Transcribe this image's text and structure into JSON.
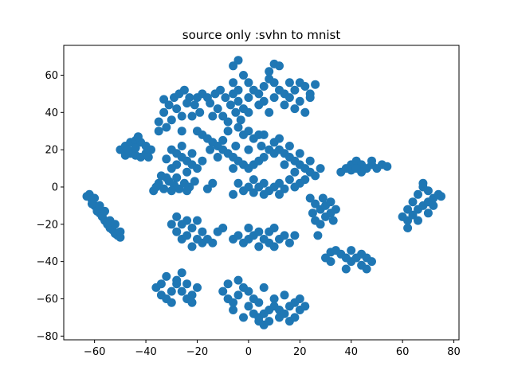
{
  "chart_data": {
    "type": "scatter",
    "title": "source only :svhn to mnist",
    "xlabel": "",
    "ylabel": "",
    "xlim": [
      -72,
      82
    ],
    "ylim": [
      -82,
      76
    ],
    "xticks": [
      -60,
      -40,
      -20,
      0,
      20,
      40,
      60,
      80
    ],
    "yticks": [
      -80,
      -60,
      -40,
      -20,
      0,
      20,
      40,
      60
    ],
    "xtick_labels": [
      "−60",
      "−40",
      "−20",
      "0",
      "20",
      "40",
      "60",
      "80"
    ],
    "ytick_labels": [
      "−80",
      "−60",
      "−40",
      "−20",
      "0",
      "20",
      "40",
      "60"
    ],
    "grid": false,
    "color": "#1f77b4",
    "points": [
      [
        -62,
        -4
      ],
      [
        -61,
        -7
      ],
      [
        -60,
        -10
      ],
      [
        -59,
        -12
      ],
      [
        -58,
        -14
      ],
      [
        -57,
        -16
      ],
      [
        -56,
        -18
      ],
      [
        -55,
        -20
      ],
      [
        -54,
        -22
      ],
      [
        -53,
        -23
      ],
      [
        -52,
        -25
      ],
      [
        -51,
        -26
      ],
      [
        -50,
        -27
      ],
      [
        -63,
        -5
      ],
      [
        -61,
        -9
      ],
      [
        -59,
        -13
      ],
      [
        -57,
        -15
      ],
      [
        -55,
        -19
      ],
      [
        -53,
        -21
      ],
      [
        -50,
        -24
      ],
      [
        -56,
        -13
      ],
      [
        -58,
        -10
      ],
      [
        -54,
        -18
      ],
      [
        -52,
        -20
      ],
      [
        -60,
        -6
      ],
      [
        -50,
        20
      ],
      [
        -48,
        22
      ],
      [
        -46,
        24
      ],
      [
        -44,
        25
      ],
      [
        -42,
        24
      ],
      [
        -40,
        22
      ],
      [
        -38,
        20
      ],
      [
        -46,
        18
      ],
      [
        -44,
        17
      ],
      [
        -42,
        16
      ],
      [
        -48,
        17
      ],
      [
        -40,
        18
      ],
      [
        -44,
        21
      ],
      [
        -43,
        27
      ],
      [
        -47,
        20
      ],
      [
        -39,
        16
      ],
      [
        -37,
        -2
      ],
      [
        -35,
        2
      ],
      [
        -33,
        -1
      ],
      [
        -31,
        3
      ],
      [
        -29,
        1
      ],
      [
        -27,
        -1
      ],
      [
        -25,
        2
      ],
      [
        -23,
        0
      ],
      [
        -21,
        3
      ],
      [
        -28,
        5
      ],
      [
        -32,
        5
      ],
      [
        -36,
        0
      ],
      [
        -24,
        -2
      ],
      [
        -30,
        -2
      ],
      [
        -34,
        6
      ],
      [
        -35,
        35
      ],
      [
        -33,
        40
      ],
      [
        -31,
        44
      ],
      [
        -29,
        48
      ],
      [
        -27,
        50
      ],
      [
        -25,
        52
      ],
      [
        -23,
        48
      ],
      [
        -21,
        44
      ],
      [
        -19,
        40
      ],
      [
        -30,
        36
      ],
      [
        -26,
        38
      ],
      [
        -22,
        38
      ],
      [
        -33,
        47
      ],
      [
        -28,
        42
      ],
      [
        -24,
        45
      ],
      [
        -20,
        48
      ],
      [
        -18,
        50
      ],
      [
        -35,
        30
      ],
      [
        -32,
        32
      ],
      [
        -26,
        30
      ],
      [
        -15,
        45
      ],
      [
        -13,
        50
      ],
      [
        -11,
        52
      ],
      [
        -9,
        48
      ],
      [
        -7,
        44
      ],
      [
        -5,
        40
      ],
      [
        -3,
        36
      ],
      [
        -12,
        42
      ],
      [
        -10,
        38
      ],
      [
        -8,
        35
      ],
      [
        -14,
        38
      ],
      [
        -6,
        50
      ],
      [
        -4,
        46
      ],
      [
        -2,
        42
      ],
      [
        -16,
        48
      ],
      [
        -20,
        30
      ],
      [
        -18,
        28
      ],
      [
        -16,
        26
      ],
      [
        -14,
        24
      ],
      [
        -12,
        22
      ],
      [
        -10,
        20
      ],
      [
        -8,
        18
      ],
      [
        -6,
        16
      ],
      [
        -4,
        14
      ],
      [
        -2,
        12
      ],
      [
        0,
        10
      ],
      [
        2,
        12
      ],
      [
        4,
        14
      ],
      [
        6,
        16
      ],
      [
        -10,
        25
      ],
      [
        -5,
        22
      ],
      [
        0,
        20
      ],
      [
        5,
        22
      ],
      [
        -15,
        20
      ],
      [
        -2,
        28
      ],
      [
        2,
        26
      ],
      [
        -8,
        30
      ],
      [
        -4,
        32
      ],
      [
        0,
        30
      ],
      [
        4,
        28
      ],
      [
        8,
        20
      ],
      [
        10,
        18
      ],
      [
        -12,
        16
      ],
      [
        -6,
        10
      ],
      [
        -30,
        20
      ],
      [
        -28,
        18
      ],
      [
        -26,
        16
      ],
      [
        -24,
        14
      ],
      [
        -22,
        12
      ],
      [
        -28,
        12
      ],
      [
        -24,
        8
      ],
      [
        -20,
        10
      ],
      [
        -18,
        14
      ],
      [
        -32,
        15
      ],
      [
        -26,
        22
      ],
      [
        -22,
        18
      ],
      [
        -30,
        10
      ],
      [
        -2,
        60
      ],
      [
        0,
        56
      ],
      [
        2,
        52
      ],
      [
        4,
        50
      ],
      [
        6,
        54
      ],
      [
        8,
        58
      ],
      [
        10,
        56
      ],
      [
        12,
        52
      ],
      [
        14,
        50
      ],
      [
        16,
        48
      ],
      [
        18,
        52
      ],
      [
        20,
        56
      ],
      [
        22,
        54
      ],
      [
        24,
        50
      ],
      [
        -4,
        52
      ],
      [
        -6,
        56
      ],
      [
        0,
        48
      ],
      [
        6,
        46
      ],
      [
        10,
        48
      ],
      [
        14,
        44
      ],
      [
        20,
        46
      ],
      [
        24,
        48
      ],
      [
        16,
        56
      ],
      [
        8,
        62
      ],
      [
        10,
        66
      ],
      [
        -6,
        65
      ],
      [
        -4,
        68
      ],
      [
        12,
        65
      ],
      [
        26,
        55
      ],
      [
        22,
        40
      ],
      [
        18,
        42
      ],
      [
        4,
        44
      ],
      [
        0,
        40
      ],
      [
        8,
        40
      ],
      [
        6,
        28
      ],
      [
        10,
        24
      ],
      [
        12,
        20
      ],
      [
        14,
        18
      ],
      [
        16,
        16
      ],
      [
        18,
        14
      ],
      [
        20,
        12
      ],
      [
        22,
        10
      ],
      [
        24,
        8
      ],
      [
        26,
        6
      ],
      [
        14,
        12
      ],
      [
        18,
        8
      ],
      [
        22,
        4
      ],
      [
        20,
        2
      ],
      [
        28,
        10
      ],
      [
        24,
        14
      ],
      [
        20,
        18
      ],
      [
        16,
        22
      ],
      [
        12,
        26
      ],
      [
        -4,
        2
      ],
      [
        -2,
        -2
      ],
      [
        0,
        0
      ],
      [
        2,
        -3
      ],
      [
        4,
        0
      ],
      [
        6,
        2
      ],
      [
        8,
        -2
      ],
      [
        10,
        0
      ],
      [
        12,
        2
      ],
      [
        14,
        -1
      ],
      [
        16,
        4
      ],
      [
        18,
        0
      ],
      [
        2,
        4
      ],
      [
        -6,
        -4
      ],
      [
        6,
        -4
      ],
      [
        12,
        -4
      ],
      [
        -14,
        2
      ],
      [
        -16,
        -1
      ],
      [
        24,
        -6
      ],
      [
        26,
        -9
      ],
      [
        28,
        -12
      ],
      [
        30,
        -10
      ],
      [
        32,
        -8
      ],
      [
        34,
        -12
      ],
      [
        30,
        -16
      ],
      [
        28,
        -20
      ],
      [
        26,
        -18
      ],
      [
        32,
        -14
      ],
      [
        29,
        -6
      ],
      [
        25,
        -14
      ],
      [
        33,
        -18
      ],
      [
        27,
        -26
      ],
      [
        36,
        8
      ],
      [
        38,
        10
      ],
      [
        40,
        12
      ],
      [
        42,
        14
      ],
      [
        44,
        12
      ],
      [
        46,
        10
      ],
      [
        48,
        12
      ],
      [
        50,
        10
      ],
      [
        52,
        12
      ],
      [
        54,
        11
      ],
      [
        44,
        8
      ],
      [
        40,
        9
      ],
      [
        48,
        14
      ],
      [
        42,
        10
      ],
      [
        62,
        -18
      ],
      [
        64,
        -15
      ],
      [
        66,
        -12
      ],
      [
        68,
        -10
      ],
      [
        70,
        -8
      ],
      [
        72,
        -6
      ],
      [
        74,
        -4
      ],
      [
        70,
        -2
      ],
      [
        68,
        0
      ],
      [
        66,
        -4
      ],
      [
        64,
        -8
      ],
      [
        62,
        -12
      ],
      [
        60,
        -16
      ],
      [
        72,
        -10
      ],
      [
        66,
        -18
      ],
      [
        70,
        -14
      ],
      [
        75,
        -5
      ],
      [
        62,
        -22
      ],
      [
        68,
        2
      ],
      [
        -30,
        -20
      ],
      [
        -28,
        -24
      ],
      [
        -26,
        -28
      ],
      [
        -24,
        -26
      ],
      [
        -22,
        -22
      ],
      [
        -20,
        -18
      ],
      [
        -18,
        -24
      ],
      [
        -16,
        -28
      ],
      [
        -14,
        -30
      ],
      [
        -12,
        -24
      ],
      [
        -10,
        -22
      ],
      [
        -20,
        -28
      ],
      [
        -24,
        -18
      ],
      [
        -28,
        -16
      ],
      [
        -26,
        -20
      ],
      [
        -18,
        -30
      ],
      [
        -22,
        -32
      ],
      [
        -4,
        -26
      ],
      [
        -2,
        -30
      ],
      [
        0,
        -28
      ],
      [
        2,
        -26
      ],
      [
        4,
        -24
      ],
      [
        6,
        -28
      ],
      [
        8,
        -30
      ],
      [
        10,
        -32
      ],
      [
        12,
        -28
      ],
      [
        14,
        -26
      ],
      [
        16,
        -30
      ],
      [
        8,
        -24
      ],
      [
        4,
        -32
      ],
      [
        -6,
        -28
      ],
      [
        10,
        -22
      ],
      [
        0,
        -22
      ],
      [
        18,
        -26
      ],
      [
        30,
        -38
      ],
      [
        32,
        -35
      ],
      [
        34,
        -34
      ],
      [
        36,
        -36
      ],
      [
        38,
        -38
      ],
      [
        40,
        -40
      ],
      [
        42,
        -38
      ],
      [
        44,
        -36
      ],
      [
        46,
        -38
      ],
      [
        48,
        -40
      ],
      [
        40,
        -34
      ],
      [
        44,
        -42
      ],
      [
        38,
        -44
      ],
      [
        46,
        -44
      ],
      [
        32,
        -40
      ],
      [
        -36,
        -54
      ],
      [
        -34,
        -58
      ],
      [
        -32,
        -60
      ],
      [
        -30,
        -56
      ],
      [
        -28,
        -52
      ],
      [
        -26,
        -56
      ],
      [
        -24,
        -60
      ],
      [
        -22,
        -58
      ],
      [
        -20,
        -54
      ],
      [
        -28,
        -50
      ],
      [
        -24,
        -52
      ],
      [
        -34,
        -52
      ],
      [
        -30,
        -62
      ],
      [
        -22,
        -62
      ],
      [
        -32,
        -48
      ],
      [
        -26,
        -46
      ],
      [
        -10,
        -56
      ],
      [
        -8,
        -60
      ],
      [
        -6,
        -62
      ],
      [
        -4,
        -58
      ],
      [
        -2,
        -54
      ],
      [
        0,
        -56
      ],
      [
        2,
        -60
      ],
      [
        4,
        -62
      ],
      [
        -8,
        -52
      ],
      [
        -4,
        -50
      ],
      [
        0,
        -64
      ],
      [
        -6,
        -66
      ],
      [
        2,
        -68
      ],
      [
        -2,
        -70
      ],
      [
        4,
        -72
      ],
      [
        6,
        -54
      ],
      [
        4,
        -70
      ],
      [
        6,
        -68
      ],
      [
        8,
        -66
      ],
      [
        10,
        -64
      ],
      [
        12,
        -66
      ],
      [
        14,
        -68
      ],
      [
        16,
        -64
      ],
      [
        18,
        -62
      ],
      [
        20,
        -66
      ],
      [
        22,
        -64
      ],
      [
        12,
        -70
      ],
      [
        8,
        -72
      ],
      [
        16,
        -72
      ],
      [
        18,
        -70
      ],
      [
        6,
        -74
      ],
      [
        10,
        -60
      ],
      [
        14,
        -58
      ],
      [
        20,
        -60
      ]
    ]
  }
}
